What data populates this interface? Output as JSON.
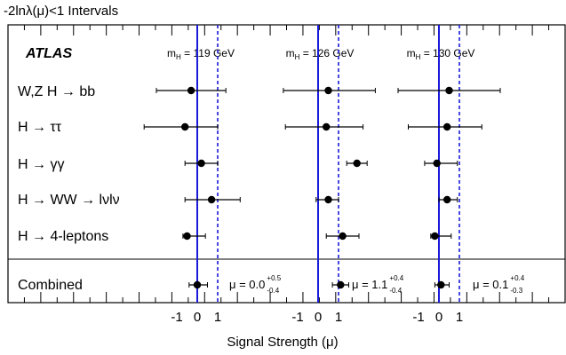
{
  "chart_data": {
    "type": "scatter",
    "title": "-2lnλ(μ)<1 Intervals",
    "logo": "ATLAS",
    "xlabel": "Signal Strength (μ)",
    "categories": [
      "W,Z H → bb",
      "H → ττ",
      "H → γγ",
      "H → WW → lνlν",
      "H → 4-leptons",
      "Combined"
    ],
    "tick_labels": [
      "-1",
      "0",
      "1"
    ],
    "panels": [
      {
        "mass_label_prefix": "m",
        "mass_label_sub": "H",
        "mass_label_rest": " = 119 GeV",
        "points": [
          {
            "category": "W,Z H → bb",
            "value": -0.3,
            "low": -2.0,
            "high": 1.4
          },
          {
            "category": "H → ττ",
            "value": -0.6,
            "low": -2.6,
            "high": 1.0
          },
          {
            "category": "H → γγ",
            "value": 0.2,
            "low": -0.6,
            "high": 1.0
          },
          {
            "category": "H → WW → lνlν",
            "value": 0.7,
            "low": -0.6,
            "high": 2.1
          },
          {
            "category": "H → 4-leptons",
            "value": -0.5,
            "low": -0.7,
            "high": 0.4
          },
          {
            "category": "Combined",
            "value": 0.0,
            "low": -0.4,
            "high": 0.5
          }
        ],
        "combined": {
          "prefix": "μ = ",
          "value": "0.0",
          "plus": "+0.5",
          "minus": "-0.4"
        }
      },
      {
        "mass_label_prefix": "m",
        "mass_label_sub": "H",
        "mass_label_rest": " = 126 GeV",
        "points": [
          {
            "category": "W,Z H → bb",
            "value": 0.5,
            "low": -1.7,
            "high": 2.8
          },
          {
            "category": "H → ττ",
            "value": 0.4,
            "low": -1.6,
            "high": 2.2
          },
          {
            "category": "H → γγ",
            "value": 1.9,
            "low": 1.4,
            "high": 2.4
          },
          {
            "category": "H → WW → lνlν",
            "value": 0.5,
            "low": -0.1,
            "high": 1.0
          },
          {
            "category": "H → 4-leptons",
            "value": 1.2,
            "low": 0.4,
            "high": 2.0
          },
          {
            "category": "Combined",
            "value": 1.1,
            "low": 0.7,
            "high": 1.5
          }
        ],
        "combined": {
          "prefix": "μ = ",
          "value": "1.1",
          "plus": "+0.4",
          "minus": "-0.4"
        }
      },
      {
        "mass_label_prefix": "m",
        "mass_label_sub": "H",
        "mass_label_rest": " = 130 GeV",
        "points": [
          {
            "category": "W,Z H → bb",
            "value": 0.5,
            "low": -2.0,
            "high": 3.0
          },
          {
            "category": "H → ττ",
            "value": 0.4,
            "low": -1.5,
            "high": 2.1
          },
          {
            "category": "H → γγ",
            "value": -0.1,
            "low": -0.7,
            "high": 0.9
          },
          {
            "category": "H → WW → lνlν",
            "value": 0.4,
            "low": 0.0,
            "high": 0.9
          },
          {
            "category": "H → 4-leptons",
            "value": -0.2,
            "low": -0.4,
            "high": 0.6
          },
          {
            "category": "Combined",
            "value": 0.1,
            "low": -0.2,
            "high": 0.5
          }
        ],
        "combined": {
          "prefix": "μ = ",
          "value": "0.1",
          "plus": "+0.4",
          "minus": "-0.3"
        }
      }
    ],
    "reference_lines": [
      {
        "value": 0,
        "style": "solid",
        "color": "#1a1adb"
      },
      {
        "value": 1,
        "style": "dashed",
        "color": "#1a1adb"
      }
    ],
    "colors": {
      "points": "#000000",
      "reference": "#1a1adb",
      "frame": "#000000"
    }
  }
}
